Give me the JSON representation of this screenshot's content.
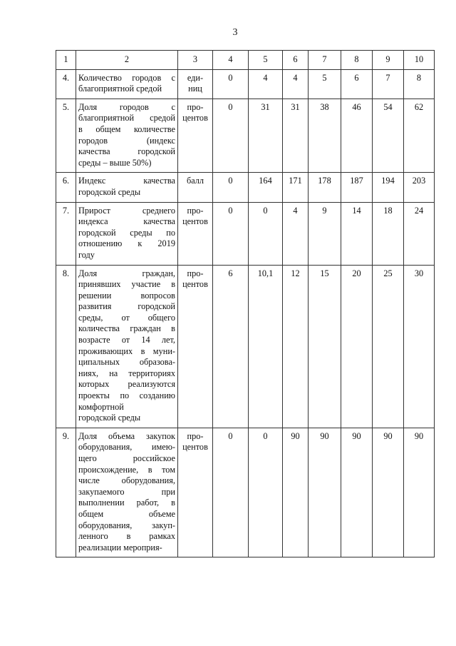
{
  "page_number": "3",
  "table": {
    "header": [
      "1",
      "2",
      "3",
      "4",
      "5",
      "6",
      "7",
      "8",
      "9",
      "10"
    ],
    "rows": [
      {
        "num": "4.",
        "desc": [
          "Количество городов с",
          "благоприятной средой"
        ],
        "unit": [
          "еди-",
          "ниц"
        ],
        "values": [
          "0",
          "4",
          "4",
          "5",
          "6",
          "7",
          "8"
        ]
      },
      {
        "num": "5.",
        "desc": [
          "Доля городов с",
          "благоприятной средой",
          "в общем количестве",
          "городов (индекс",
          "качества городской",
          "среды – выше 50%)"
        ],
        "unit": [
          "про-",
          "центов"
        ],
        "values": [
          "0",
          "31",
          "31",
          "38",
          "46",
          "54",
          "62"
        ]
      },
      {
        "num": "6.",
        "desc": [
          "Индекс качества",
          "городской среды"
        ],
        "unit": [
          "балл"
        ],
        "values": [
          "0",
          "164",
          "171",
          "178",
          "187",
          "194",
          "203"
        ]
      },
      {
        "num": "7.",
        "desc": [
          "Прирост среднего",
          "индекса качества",
          "городской среды по",
          "отношению к 2019",
          "году"
        ],
        "unit": [
          "про-",
          "центов"
        ],
        "values": [
          "0",
          "0",
          "4",
          "9",
          "14",
          "18",
          "24"
        ]
      },
      {
        "num": "8.",
        "desc": [
          "Доля граждан,",
          "принявших участие в",
          "решении вопросов",
          "развития городской",
          "среды, от общего",
          "количества граждан в",
          "возрасте от 14 лет,",
          "проживающих в муни-",
          "ципальных образова-",
          "ниях, на территориях",
          "которых реализуются",
          "проекты по созданию",
          "комфортной",
          "городской среды"
        ],
        "unit": [
          "про-",
          "центов"
        ],
        "values": [
          "6",
          "10,1",
          "12",
          "15",
          "20",
          "25",
          "30"
        ]
      },
      {
        "num": "9.",
        "desc": [
          "Доля объема закупок",
          "оборудования, имею-",
          "щего российское",
          "происхождение, в том",
          "числе оборудования,",
          "закупаемого при",
          "выполнении работ, в",
          "общем объеме",
          "оборудования, закуп-",
          "ленного в рамках",
          "реализации мероприя-"
        ],
        "unit": [
          "про-",
          "центов"
        ],
        "values": [
          "0",
          "0",
          "90",
          "90",
          "90",
          "90",
          "90"
        ]
      }
    ]
  }
}
